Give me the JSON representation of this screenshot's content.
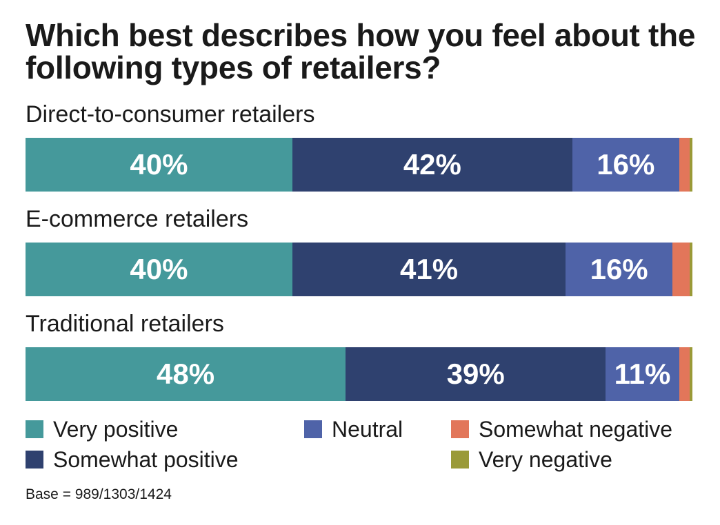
{
  "chart_data": {
    "type": "bar",
    "orientation": "horizontal",
    "stacked": true,
    "title": "Which best describes how you feel about the following types of retailers?",
    "categories": [
      "Direct-to-consumer retailers",
      "E-commerce retailers",
      "Traditional retailers"
    ],
    "series": [
      {
        "name": "Very positive",
        "color": "#45999b",
        "values": [
          40,
          40,
          48
        ],
        "labels": [
          "40%",
          "40%",
          "48%"
        ]
      },
      {
        "name": "Somewhat positive",
        "color": "#2f416f",
        "values": [
          42,
          41,
          39
        ],
        "labels": [
          "42%",
          "41%",
          "39%"
        ]
      },
      {
        "name": "Neutral",
        "color": "#4f63a8",
        "values": [
          16,
          16,
          11
        ],
        "labels": [
          "16%",
          "16%",
          "11%"
        ]
      },
      {
        "name": "Somewhat negative",
        "color": "#e2765a",
        "values": [
          1.6,
          2.6,
          1.6
        ],
        "labels": [
          "",
          "",
          ""
        ]
      },
      {
        "name": "Very negative",
        "color": "#9a9a38",
        "values": [
          0.4,
          0.4,
          0.4
        ],
        "labels": [
          "",
          "",
          ""
        ]
      }
    ],
    "xlim": [
      0,
      100
    ],
    "grid": false,
    "legend_position": "bottom",
    "footnote": "Base = 989/1303/1424"
  }
}
